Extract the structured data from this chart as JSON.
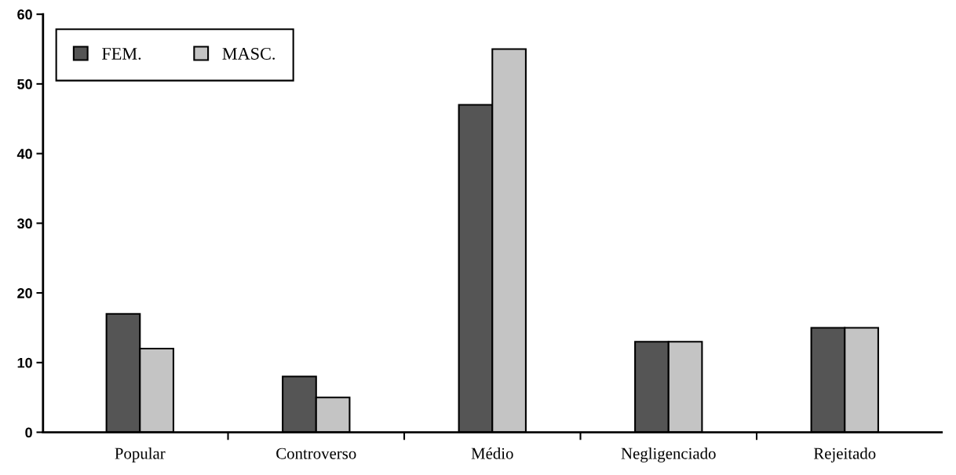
{
  "chart_data": {
    "type": "bar",
    "categories": [
      "Popular",
      "Controverso",
      "Médio",
      "Negligenciado",
      "Rejeitado"
    ],
    "series": [
      {
        "name": "FEM.",
        "color": "#555555",
        "values": [
          17,
          8,
          47,
          13,
          15
        ]
      },
      {
        "name": "MASC.",
        "color": "#c4c4c4",
        "values": [
          12,
          5,
          55,
          13,
          15
        ]
      }
    ],
    "ylim": [
      0,
      60
    ],
    "yticks": [
      0,
      10,
      20,
      30,
      40,
      50,
      60
    ],
    "grid": false,
    "legend": "top left"
  }
}
